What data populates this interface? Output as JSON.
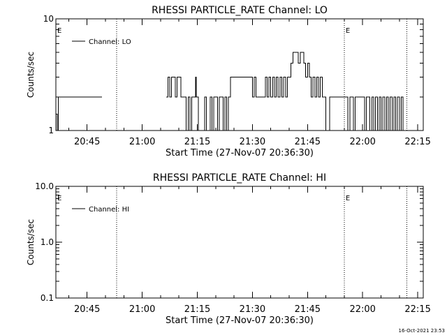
{
  "footer_timestamp": "16-Oct-2021 23:53",
  "colors": {
    "background": "#ffffff",
    "foreground": "#000000"
  },
  "chart_data": [
    {
      "type": "line",
      "title": "RHESSI PARTICLE_RATE Channel: LO",
      "xlabel": "Start Time (27-Nov-07 20:36:30)",
      "ylabel": "Counts/sec",
      "yscale": "log",
      "ylim": [
        1,
        10
      ],
      "ytick_labels": [
        "1",
        "10"
      ],
      "xlim": [
        "20:36:30",
        "22:16:30"
      ],
      "xtick_labels": [
        "20:45",
        "21:00",
        "21:15",
        "21:30",
        "21:45",
        "22:00",
        "22:15"
      ],
      "legend_position": "top-left",
      "event_markers": [
        {
          "label": "E",
          "time": "20:36:30"
        },
        {
          "label": "",
          "time": "20:53:00"
        },
        {
          "label": "E",
          "time": "21:55:00"
        },
        {
          "label": "",
          "time": "22:12:00"
        }
      ],
      "series": [
        {
          "name": "Channel: LO",
          "segments": [
            {
              "x": [
                "20:36:30",
                "20:36:50",
                "20:36:50",
                "20:37:10",
                "20:37:10",
                "20:49:00"
              ],
              "y": [
                1.4,
                1.4,
                1,
                1,
                2,
                2
              ]
            },
            {
              "x": [
                "21:06:30",
                "21:07:00",
                "21:07:00",
                "21:07:30",
                "21:07:30",
                "21:08:00",
                "21:08:00",
                "21:09:00",
                "21:09:00",
                "21:09:30",
                "21:09:30",
                "21:10:30",
                "21:10:30",
                "21:11:00",
                "21:11:00",
                "21:12:00",
                "21:12:00",
                "21:12:30",
                "21:12:30",
                "21:13:00",
                "21:13:00",
                "21:13:30",
                "21:13:30",
                "21:14:30",
                "21:14:30",
                "21:14:45",
                "21:14:45",
                "21:15:15",
                "21:15:15",
                "21:17:00",
                "21:17:00",
                "21:17:30",
                "21:17:30",
                "21:18:30",
                "21:18:30",
                "21:19:00",
                "21:19:00",
                "21:19:30",
                "21:19:30",
                "21:20:30",
                "21:20:30",
                "21:21:00",
                "21:21:00",
                "21:22:00",
                "21:22:00",
                "21:22:30",
                "21:22:30",
                "21:23:00",
                "21:23:00",
                "21:23:30",
                "21:23:30",
                "21:24:00",
                "21:24:00",
                "21:30:00",
                "21:30:00",
                "21:30:30",
                "21:30:30",
                "21:31:00",
                "21:31:00",
                "21:33:30",
                "21:33:30",
                "21:34:00",
                "21:34:00",
                "21:34:30",
                "21:34:30",
                "21:35:00",
                "21:35:00",
                "21:35:30",
                "21:35:30",
                "21:36:00",
                "21:36:00",
                "21:36:30",
                "21:36:30",
                "21:37:00",
                "21:37:00",
                "21:37:30",
                "21:37:30",
                "21:38:00",
                "21:38:00",
                "21:38:30",
                "21:38:30",
                "21:39:00",
                "21:39:00",
                "21:39:30",
                "21:39:30",
                "21:40:00",
                "21:40:00",
                "21:40:30",
                "21:40:30",
                "21:41:00",
                "21:41:00",
                "21:42:30",
                "21:42:30",
                "21:43:00",
                "21:43:00",
                "21:44:00",
                "21:44:00",
                "21:44:30",
                "21:44:30",
                "21:45:00",
                "21:45:00",
                "21:45:30",
                "21:45:30",
                "21:46:00",
                "21:46:00",
                "21:46:30",
                "21:46:30",
                "21:47:00",
                "21:47:00",
                "21:47:30",
                "21:47:30",
                "21:48:00",
                "21:48:00",
                "21:48:30",
                "21:48:30",
                "21:49:00",
                "21:49:00",
                "21:49:30",
                "21:49:30",
                "21:50:00",
                "21:50:00",
                "21:51:00",
                "21:51:00",
                "21:56:00",
                "21:56:00",
                "21:56:30",
                "21:56:30",
                "21:57:30",
                "21:57:30",
                "21:58:00",
                "21:58:00",
                "22:00:30",
                "22:00:30",
                "22:01:00",
                "22:01:00",
                "22:02:00",
                "22:02:00",
                "22:02:30",
                "22:02:30",
                "22:03:00",
                "22:03:00",
                "22:03:30",
                "22:03:30",
                "22:04:00",
                "22:04:00",
                "22:04:30",
                "22:04:30",
                "22:05:00",
                "22:05:00",
                "22:05:30",
                "22:05:30",
                "22:06:00",
                "22:06:00",
                "22:06:30",
                "22:06:30",
                "22:07:00",
                "22:07:00",
                "22:07:30",
                "22:07:30",
                "22:08:00",
                "22:08:00",
                "22:08:30",
                "22:08:30",
                "22:09:00",
                "22:09:00",
                "22:09:30",
                "22:09:30",
                "22:10:00",
                "22:10:00",
                "22:10:30",
                "22:10:30",
                "22:11:00",
                "22:11:00",
                "22:11:30",
                "22:11:30",
                "22:12:00"
              ],
              "y": [
                2,
                2,
                3,
                3,
                2,
                2,
                3,
                3,
                2,
                2,
                3,
                3,
                2,
                2,
                2,
                2,
                1,
                1,
                2,
                2,
                1,
                1,
                2,
                2,
                3,
                3,
                2,
                2,
                1,
                1,
                2,
                2,
                1,
                1,
                2,
                2,
                1,
                1,
                2,
                2,
                1,
                1,
                2,
                2,
                1,
                1,
                2,
                2,
                1,
                1,
                2,
                2,
                3,
                3,
                2,
                2,
                3,
                3,
                2,
                2,
                3,
                3,
                2,
                2,
                3,
                3,
                2,
                2,
                3,
                3,
                2,
                2,
                3,
                3,
                2,
                2,
                3,
                3,
                2,
                2,
                3,
                3,
                2,
                2,
                3,
                3,
                3,
                3,
                4,
                4,
                5,
                5,
                4,
                4,
                5,
                5,
                4,
                4,
                3,
                3,
                4,
                4,
                3,
                3,
                2,
                2,
                3,
                3,
                2,
                2,
                3,
                3,
                2,
                2,
                3,
                3,
                2,
                2,
                2,
                2,
                1,
                1,
                2,
                2,
                1,
                1,
                2,
                2,
                1,
                1,
                2,
                2,
                1,
                1,
                2,
                2,
                1,
                1,
                2,
                2,
                1,
                1,
                2,
                2,
                1,
                1,
                2,
                2,
                1,
                1,
                2,
                2,
                1,
                1,
                2,
                2,
                1,
                1,
                2,
                2,
                1,
                1,
                2,
                2,
                1,
                1,
                2,
                2,
                1,
                1,
                2,
                2,
                1,
                1,
                1,
                1
              ]
            }
          ]
        }
      ]
    },
    {
      "type": "line",
      "title": "RHESSI PARTICLE_RATE Channel: HI",
      "xlabel": "Start Time (27-Nov-07 20:36:30)",
      "ylabel": "Counts/sec",
      "yscale": "log",
      "ylim": [
        0.1,
        10
      ],
      "ytick_labels": [
        "0.1",
        "1.0",
        "10.0"
      ],
      "xlim": [
        "20:36:30",
        "22:16:30"
      ],
      "xtick_labels": [
        "20:45",
        "21:00",
        "21:15",
        "21:30",
        "21:45",
        "22:00",
        "22:15"
      ],
      "legend_position": "top-left",
      "event_markers": [
        {
          "label": "E",
          "time": "20:36:30"
        },
        {
          "label": "",
          "time": "20:53:00"
        },
        {
          "label": "E",
          "time": "21:55:00"
        },
        {
          "label": "",
          "time": "22:12:00"
        }
      ],
      "series": [
        {
          "name": "Channel: HI",
          "segments": []
        }
      ]
    }
  ]
}
